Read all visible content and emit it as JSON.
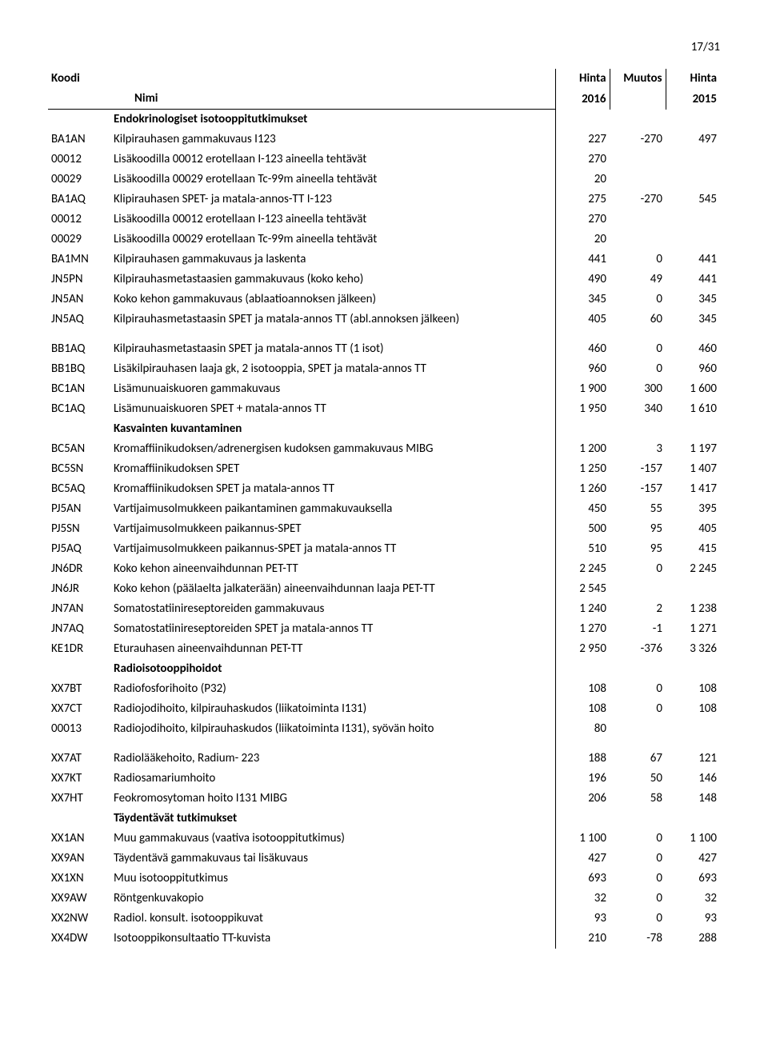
{
  "page_number": "17/31",
  "headers": {
    "koodi": "Koodi",
    "nimi": "Nimi",
    "hinta": "Hinta",
    "muutos": "Muutos",
    "y2016": "2016",
    "y2015": "2015"
  },
  "rows": [
    {
      "type": "section",
      "nimi": "Endokrinologiset isotooppitutkimukset"
    },
    {
      "type": "data",
      "koodi": "BA1AN",
      "nimi": "Kilpirauhasen gammakuvaus I123",
      "h2016": "227",
      "muutos": "-270",
      "h2015": "497"
    },
    {
      "type": "data",
      "koodi": "00012",
      "nimi": "Lisäkoodilla 00012 erotellaan I-123 aineella  tehtävät",
      "h2016": "270",
      "muutos": "",
      "h2015": ""
    },
    {
      "type": "data",
      "koodi": "00029",
      "nimi": "Lisäkoodilla 00029 erotellaan Tc-99m aineella tehtävät",
      "h2016": "20",
      "muutos": "",
      "h2015": ""
    },
    {
      "type": "data",
      "koodi": "BA1AQ",
      "nimi": "Klipirauhasen SPET- ja matala-annos-TT I-123",
      "h2016": "275",
      "muutos": "-270",
      "h2015": "545"
    },
    {
      "type": "data",
      "koodi": "00012",
      "nimi": "Lisäkoodilla 00012 erotellaan I-123 aineella  tehtävät",
      "h2016": "270",
      "muutos": "",
      "h2015": ""
    },
    {
      "type": "data",
      "koodi": "00029",
      "nimi": "Lisäkoodilla 00029 erotellaan Tc-99m aineella tehtävät",
      "h2016": "20",
      "muutos": "",
      "h2015": ""
    },
    {
      "type": "data",
      "koodi": "BA1MN",
      "nimi": "Kilpirauhasen gammakuvaus ja laskenta",
      "h2016": "441",
      "muutos": "0",
      "h2015": "441"
    },
    {
      "type": "data",
      "koodi": "JN5PN",
      "nimi": "Kilpirauhasmetastaasien gammakuvaus (koko keho)",
      "h2016": "490",
      "muutos": "49",
      "h2015": "441"
    },
    {
      "type": "data",
      "koodi": "JN5AN",
      "nimi": "Koko kehon gammakuvaus  (ablaatioannoksen jälkeen)",
      "h2016": "345",
      "muutos": "0",
      "h2015": "345"
    },
    {
      "type": "data",
      "koodi": "JN5AQ",
      "nimi": "Kilpirauhasmetastaasin SPET ja matala-annos TT (abl.annoksen jälkeen)",
      "h2016": "405",
      "muutos": "60",
      "h2015": "345"
    },
    {
      "type": "data",
      "gap": true,
      "koodi": "BB1AQ",
      "nimi": "Kilpirauhasmetastaasin SPET ja matala-annos TT (1 isot)",
      "h2016": "460",
      "muutos": "0",
      "h2015": "460"
    },
    {
      "type": "data",
      "koodi": "BB1BQ",
      "nimi": "Lisäkilpirauhasen laaja gk, 2 isotooppia, SPET ja matala-annos TT",
      "h2016": "960",
      "muutos": "0",
      "h2015": "960"
    },
    {
      "type": "data",
      "koodi": "BC1AN",
      "nimi": "Lisämunuaiskuoren gammakuvaus",
      "h2016": "1 900",
      "muutos": "300",
      "h2015": "1 600"
    },
    {
      "type": "data",
      "koodi": "BC1AQ",
      "nimi": "Lisämunuaiskuoren SPET + matala-annos TT",
      "h2016": "1 950",
      "muutos": "340",
      "h2015": "1 610"
    },
    {
      "type": "section",
      "nimi": "Kasvainten kuvantaminen"
    },
    {
      "type": "data",
      "koodi": "BC5AN",
      "nimi": "Kromaffiinikudoksen/adrenergisen kudoksen gammakuvaus  MIBG",
      "h2016": "1 200",
      "muutos": "3",
      "h2015": "1 197"
    },
    {
      "type": "data",
      "koodi": "BC5SN",
      "nimi": "Kromaffiinikudoksen SPET",
      "h2016": "1 250",
      "muutos": "-157",
      "h2015": "1 407"
    },
    {
      "type": "data",
      "koodi": "BC5AQ",
      "nimi": "Kromaffiinikudoksen SPET ja matala-annos TT",
      "h2016": "1 260",
      "muutos": "-157",
      "h2015": "1 417"
    },
    {
      "type": "data",
      "koodi": "PJ5AN",
      "nimi": "Vartijaimusolmukkeen paikantaminen gammakuvauksella",
      "h2016": "450",
      "muutos": "55",
      "h2015": "395"
    },
    {
      "type": "data",
      "koodi": "PJ5SN",
      "nimi": "Vartijaimusolmukkeen paikannus-SPET",
      "h2016": "500",
      "muutos": "95",
      "h2015": "405"
    },
    {
      "type": "data",
      "koodi": "PJ5AQ",
      "nimi": "Vartijaimusolmukkeen paikannus-SPET ja matala-annos TT",
      "h2016": "510",
      "muutos": "95",
      "h2015": "415"
    },
    {
      "type": "data",
      "koodi": "JN6DR",
      "nimi": "Koko kehon aineenvaihdunnan PET-TT",
      "h2016": "2 245",
      "muutos": "0",
      "h2015": "2 245"
    },
    {
      "type": "data",
      "koodi": "JN6JR",
      "nimi": "Koko kehon (päälaelta jalkaterään) aineenvaihdunnan laaja PET-TT",
      "h2016": "2 545",
      "muutos": "",
      "h2015": ""
    },
    {
      "type": "data",
      "koodi": "JN7AN",
      "nimi": "Somatostatiinireseptoreiden gammakuvaus",
      "h2016": "1 240",
      "muutos": "2",
      "h2015": "1 238"
    },
    {
      "type": "data",
      "koodi": "JN7AQ",
      "nimi": "Somatostatiinireseptoreiden SPET ja matala-annos TT",
      "h2016": "1 270",
      "muutos": "-1",
      "h2015": "1 271"
    },
    {
      "type": "data",
      "koodi": "KE1DR",
      "nimi": "Eturauhasen aineenvaihdunnan PET-TT",
      "h2016": "2 950",
      "muutos": "-376",
      "h2015": "3 326"
    },
    {
      "type": "section",
      "nimi": "Radioisotooppihoidot"
    },
    {
      "type": "data",
      "koodi": "XX7BT",
      "nimi": "Radiofosforihoito (P32)",
      "h2016": "108",
      "muutos": "0",
      "h2015": "108"
    },
    {
      "type": "data",
      "koodi": "XX7CT",
      "nimi": "Radiojodihoito, kilpirauhaskudos (liikatoiminta I131)",
      "h2016": "108",
      "muutos": "0",
      "h2015": "108"
    },
    {
      "type": "data",
      "koodi": "00013",
      "nimi": "Radiojodihoito, kilpirauhaskudos (liikatoiminta I131), syövän hoito",
      "h2016": "80",
      "muutos": "",
      "h2015": ""
    },
    {
      "type": "data",
      "gap": true,
      "koodi": "XX7AT",
      "nimi": "Radiolääkehoito, Radium- 223",
      "h2016": "188",
      "muutos": "67",
      "h2015": "121"
    },
    {
      "type": "data",
      "koodi": "XX7KT",
      "nimi": "Radiosamariumhoito",
      "h2016": "196",
      "muutos": "50",
      "h2015": "146"
    },
    {
      "type": "data",
      "koodi": "XX7HT",
      "nimi": "Feokromosytoman hoito I131 MIBG",
      "h2016": "206",
      "muutos": "58",
      "h2015": "148"
    },
    {
      "type": "section",
      "nimi": "Täydentävät tutkimukset"
    },
    {
      "type": "data",
      "koodi": "XX1AN",
      "nimi": "Muu gammakuvaus (vaativa isotooppitutkimus)",
      "h2016": "1 100",
      "muutos": "0",
      "h2015": "1 100"
    },
    {
      "type": "data",
      "koodi": "XX9AN",
      "nimi": "Täydentävä gammakuvaus tai lisäkuvaus",
      "h2016": "427",
      "muutos": "0",
      "h2015": "427"
    },
    {
      "type": "data",
      "koodi": "XX1XN",
      "nimi": "Muu isotooppitutkimus",
      "h2016": "693",
      "muutos": "0",
      "h2015": "693"
    },
    {
      "type": "data",
      "koodi": "XX9AW",
      "nimi": "Röntgenkuvakopio",
      "h2016": "32",
      "muutos": "0",
      "h2015": "32"
    },
    {
      "type": "data",
      "koodi": "XX2NW",
      "nimi": "Radiol. konsult. isotooppikuvat",
      "h2016": "93",
      "muutos": "0",
      "h2015": "93"
    },
    {
      "type": "data",
      "koodi": "XX4DW",
      "nimi": "Isotooppikonsultaatio TT-kuvista",
      "h2016": "210",
      "muutos": "-78",
      "h2015": "288"
    }
  ]
}
